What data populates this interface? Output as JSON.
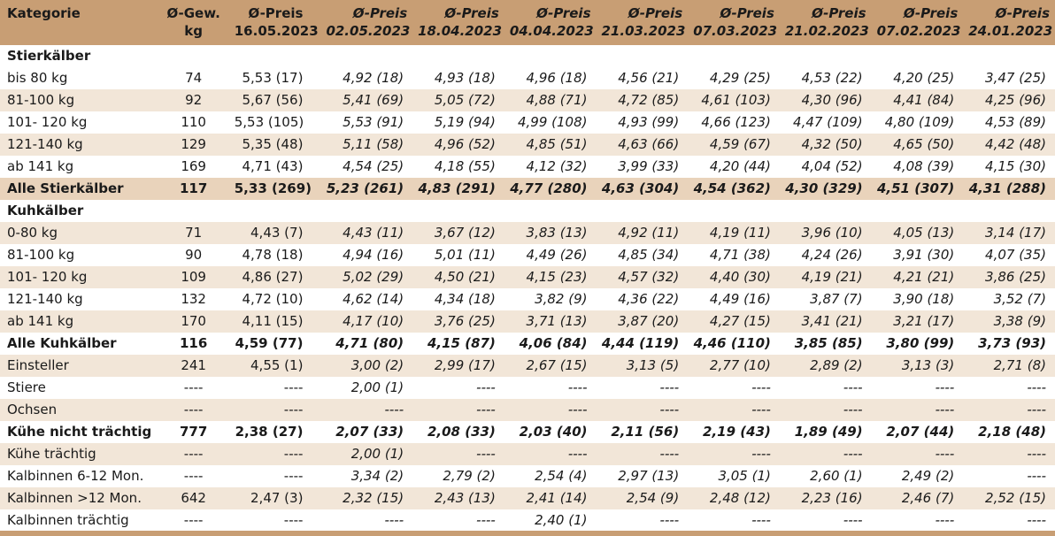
{
  "headers": [
    [
      "Kategorie",
      ""
    ],
    [
      "Ø-Gew.",
      "kg"
    ],
    [
      "Ø-Preis",
      "16.05.2023"
    ],
    [
      "Ø-Preis",
      "02.05.2023"
    ],
    [
      "Ø-Preis",
      "18.04.2023"
    ],
    [
      "Ø-Preis",
      "04.04.2023"
    ],
    [
      "Ø-Preis",
      "21.03.2023"
    ],
    [
      "Ø-Preis",
      "07.03.2023"
    ],
    [
      "Ø-Preis",
      "21.02.2023"
    ],
    [
      "Ø-Preis",
      "07.02.2023"
    ],
    [
      "Ø-Preis",
      "24.01.2023"
    ]
  ],
  "rows": [
    {
      "type": "section",
      "cells": [
        "Stierkälber",
        "",
        "",
        "",
        "",
        "",
        "",
        "",
        "",
        "",
        ""
      ]
    },
    {
      "type": "plain",
      "cells": [
        "bis 80 kg",
        "74",
        "5,53 (17)",
        "4,92 (18)",
        "4,93 (18)",
        "4,96 (18)",
        "4,56 (21)",
        "4,29 (25)",
        "4,53 (22)",
        "4,20 (25)",
        "3,47 (25)"
      ]
    },
    {
      "type": "alt",
      "cells": [
        "81-100 kg",
        "92",
        "5,67 (56)",
        "5,41 (69)",
        "5,05 (72)",
        "4,88 (71)",
        "4,72 (85)",
        "4,61 (103)",
        "4,30 (96)",
        "4,41 (84)",
        "4,25 (96)"
      ]
    },
    {
      "type": "plain",
      "cells": [
        "101- 120 kg",
        "110",
        "5,53 (105)",
        "5,53 (91)",
        "5,19 (94)",
        "4,99 (108)",
        "4,93 (99)",
        "4,66 (123)",
        "4,47 (109)",
        "4,80 (109)",
        "4,53 (89)"
      ]
    },
    {
      "type": "alt",
      "cells": [
        "121-140 kg",
        "129",
        "5,35 (48)",
        "5,11 (58)",
        "4,96 (52)",
        "4,85 (51)",
        "4,63 (66)",
        "4,59 (67)",
        "4,32 (50)",
        "4,65 (50)",
        "4,42 (48)"
      ]
    },
    {
      "type": "plain",
      "cells": [
        "ab 141 kg",
        "169",
        "4,71 (43)",
        "4,54 (25)",
        "4,18 (55)",
        "4,12 (32)",
        "3,99 (33)",
        "4,20 (44)",
        "4,04 (52)",
        "4,08 (39)",
        "4,15 (30)"
      ]
    },
    {
      "type": "total",
      "cells": [
        "Alle Stierkälber",
        "117",
        "5,33 (269)",
        "5,23 (261)",
        "4,83 (291)",
        "4,77 (280)",
        "4,63 (304)",
        "4,54 (362)",
        "4,30 (329)",
        "4,51 (307)",
        "4,31 (288)"
      ]
    },
    {
      "type": "section",
      "cells": [
        "Kuhkälber",
        "",
        "",
        "",
        "",
        "",
        "",
        "",
        "",
        "",
        ""
      ]
    },
    {
      "type": "alt",
      "cells": [
        "0-80 kg",
        "71",
        "4,43 (7)",
        "4,43 (11)",
        "3,67 (12)",
        "3,83 (13)",
        "4,92 (11)",
        "4,19 (11)",
        "3,96 (10)",
        "4,05 (13)",
        "3,14 (17)"
      ]
    },
    {
      "type": "plain",
      "cells": [
        "81-100 kg",
        "90",
        "4,78 (18)",
        "4,94 (16)",
        "5,01 (11)",
        "4,49 (26)",
        "4,85 (34)",
        "4,71 (38)",
        "4,24 (26)",
        "3,91 (30)",
        "4,07 (35)"
      ]
    },
    {
      "type": "alt",
      "cells": [
        "101- 120 kg",
        "109",
        "4,86 (27)",
        "5,02 (29)",
        "4,50 (21)",
        "4,15 (23)",
        "4,57 (32)",
        "4,40 (30)",
        "4,19 (21)",
        "4,21 (21)",
        "3,86 (25)"
      ]
    },
    {
      "type": "plain",
      "cells": [
        "121-140 kg",
        "132",
        "4,72 (10)",
        "4,62 (14)",
        "4,34 (18)",
        "3,82 (9)",
        "4,36 (22)",
        "4,49 (16)",
        "3,87 (7)",
        "3,90 (18)",
        "3,52 (7)"
      ]
    },
    {
      "type": "alt",
      "cells": [
        "ab 141 kg",
        "170",
        "4,11 (15)",
        "4,17 (10)",
        "3,76 (25)",
        "3,71 (13)",
        "3,87 (20)",
        "4,27 (15)",
        "3,41 (21)",
        "3,21 (17)",
        "3,38 (9)"
      ]
    },
    {
      "type": "section",
      "cells": [
        "Alle Kuhkälber",
        "116",
        "4,59 (77)",
        "4,71 (80)",
        "4,15 (87)",
        "4,06 (84)",
        "4,44 (119)",
        "4,46 (110)",
        "3,85 (85)",
        "3,80 (99)",
        "3,73 (93)"
      ]
    },
    {
      "type": "alt",
      "cells": [
        "Einsteller",
        "241",
        "4,55 (1)",
        "3,00 (2)",
        "2,99 (17)",
        "2,67 (15)",
        "3,13 (5)",
        "2,77 (10)",
        "2,89 (2)",
        "3,13 (3)",
        "2,71 (8)"
      ]
    },
    {
      "type": "plain",
      "cells": [
        "Stiere",
        "----",
        "----",
        "2,00 (1)",
        "----",
        "----",
        "----",
        "----",
        "----",
        "----",
        "----"
      ]
    },
    {
      "type": "alt",
      "cells": [
        "Ochsen",
        "----",
        "----",
        "----",
        "----",
        "----",
        "----",
        "----",
        "----",
        "----",
        "----"
      ]
    },
    {
      "type": "section",
      "cells": [
        "Kühe nicht trächtig",
        "777",
        "2,38 (27)",
        "2,07 (33)",
        "2,08 (33)",
        "2,03 (40)",
        "2,11 (56)",
        "2,19 (43)",
        "1,89 (49)",
        "2,07 (44)",
        "2,18 (48)"
      ]
    },
    {
      "type": "alt",
      "cells": [
        "Kühe trächtig",
        "----",
        "----",
        "2,00 (1)",
        "----",
        "----",
        "----",
        "----",
        "----",
        "----",
        "----"
      ]
    },
    {
      "type": "plain",
      "cells": [
        "Kalbinnen 6-12 Mon.",
        "----",
        "----",
        "3,34 (2)",
        "2,79 (2)",
        "2,54 (4)",
        "2,97 (13)",
        "3,05 (1)",
        "2,60 (1)",
        "2,49 (2)",
        "----"
      ]
    },
    {
      "type": "alt",
      "cells": [
        "Kalbinnen >12 Mon.",
        "642",
        "2,47 (3)",
        "2,32 (15)",
        "2,43 (13)",
        "2,41 (14)",
        "2,54 (9)",
        "2,48 (12)",
        "2,23 (16)",
        "2,46 (7)",
        "2,52 (15)"
      ]
    },
    {
      "type": "plain",
      "cells": [
        "Kalbinnen trächtig",
        "----",
        "----",
        "----",
        "----",
        "2,40 (1)",
        "----",
        "----",
        "----",
        "----",
        "----"
      ]
    }
  ]
}
